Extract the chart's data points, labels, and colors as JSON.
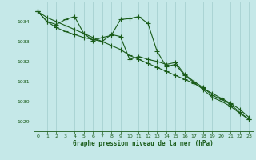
{
  "background_color": "#c5e8e8",
  "grid_color": "#a0cccc",
  "line_color": "#1a5c1a",
  "xlabel": "Graphe pression niveau de la mer (hPa)",
  "xlim": [
    -0.5,
    23.5
  ],
  "ylim": [
    1028.5,
    1035.0
  ],
  "yticks": [
    1029,
    1030,
    1031,
    1032,
    1033,
    1034
  ],
  "xticks": [
    0,
    1,
    2,
    3,
    4,
    5,
    6,
    7,
    8,
    9,
    10,
    11,
    12,
    13,
    14,
    15,
    16,
    17,
    18,
    19,
    20,
    21,
    22,
    23
  ],
  "series": [
    {
      "x": [
        0,
        1,
        2,
        3,
        4,
        5,
        6,
        7,
        8,
        9,
        10,
        11,
        12,
        13,
        14,
        15,
        16,
        17,
        18,
        19,
        20,
        21,
        22,
        23
      ],
      "y": [
        1034.5,
        1034.2,
        1034.0,
        1033.8,
        1033.6,
        1033.4,
        1033.2,
        1033.0,
        1032.8,
        1032.6,
        1032.3,
        1032.1,
        1031.9,
        1031.7,
        1031.5,
        1031.3,
        1031.1,
        1030.9,
        1030.65,
        1030.4,
        1030.15,
        1029.9,
        1029.6,
        1029.2
      ],
      "marker": "+",
      "markersize": 4,
      "linewidth": 0.8
    },
    {
      "x": [
        0,
        1,
        2,
        3,
        4,
        5,
        6,
        7,
        8,
        9,
        10,
        11,
        12,
        13,
        14,
        15,
        16,
        17,
        18,
        19,
        20,
        21,
        22,
        23
      ],
      "y": [
        1034.5,
        1034.0,
        1033.85,
        1034.1,
        1034.25,
        1033.4,
        1033.05,
        1033.2,
        1033.3,
        1034.1,
        1034.15,
        1034.25,
        1033.9,
        1032.5,
        1031.75,
        1031.85,
        1031.3,
        1030.95,
        1030.6,
        1030.2,
        1030.0,
        1029.75,
        1029.4,
        1029.1
      ],
      "marker": "+",
      "markersize": 4,
      "linewidth": 0.8
    },
    {
      "x": [
        0,
        1,
        2,
        3,
        4,
        5,
        6,
        7,
        8,
        9,
        10,
        11,
        12,
        13,
        14,
        15,
        16,
        17,
        18,
        19,
        20,
        21,
        22,
        23
      ],
      "y": [
        1034.5,
        1034.0,
        1033.7,
        1033.5,
        1033.35,
        1033.2,
        1033.1,
        1033.0,
        1033.35,
        1033.25,
        1032.1,
        1032.25,
        1032.1,
        1032.0,
        1031.85,
        1031.95,
        1031.35,
        1031.0,
        1030.7,
        1030.3,
        1030.1,
        1029.85,
        1029.45,
        1029.1
      ],
      "marker": "+",
      "markersize": 4,
      "linewidth": 0.8
    }
  ]
}
